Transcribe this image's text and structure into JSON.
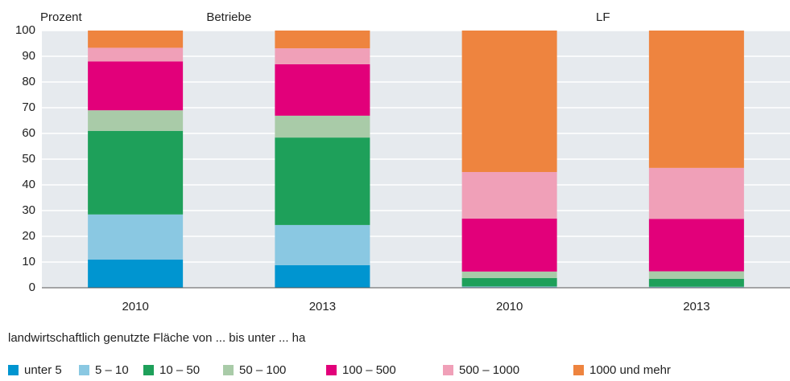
{
  "chart_data": {
    "type": "stacked_bar",
    "y_label": "Prozent",
    "group_labels": [
      "Betriebe",
      "LF"
    ],
    "categories": [
      "2010",
      "2013",
      "2010",
      "2013"
    ],
    "ylim": [
      0,
      100
    ],
    "yticks": [
      0,
      10,
      20,
      30,
      40,
      50,
      60,
      70,
      80,
      90,
      100
    ],
    "grid": true,
    "legend_title": "landwirtschaftlich genutzte Fläche von ... bis unter ... ha",
    "series": [
      {
        "name": "unter 5",
        "color": "#0095d0",
        "values": [
          11,
          8.8,
          0.1,
          0.1
        ]
      },
      {
        "name": "5 – 10",
        "color": "#8ac8e2",
        "values": [
          17.5,
          15.6,
          0.4,
          0.3
        ]
      },
      {
        "name": "10 – 50",
        "color": "#1ea05a",
        "values": [
          32.5,
          34,
          3.3,
          3.1
        ]
      },
      {
        "name": "50 – 100",
        "color": "#a9cba8",
        "values": [
          8,
          8.5,
          2.5,
          2.9
        ]
      },
      {
        "name": "100 – 500",
        "color": "#e2007a",
        "values": [
          19,
          20,
          20.6,
          20.4
        ]
      },
      {
        "name": "500 – 1000",
        "color": "#f0a0b8",
        "values": [
          5.3,
          6.2,
          18.1,
          19.8
        ]
      },
      {
        "name": "1000 und mehr",
        "color": "#ee843f",
        "values": [
          6.7,
          6.9,
          55,
          53.4
        ]
      }
    ]
  }
}
